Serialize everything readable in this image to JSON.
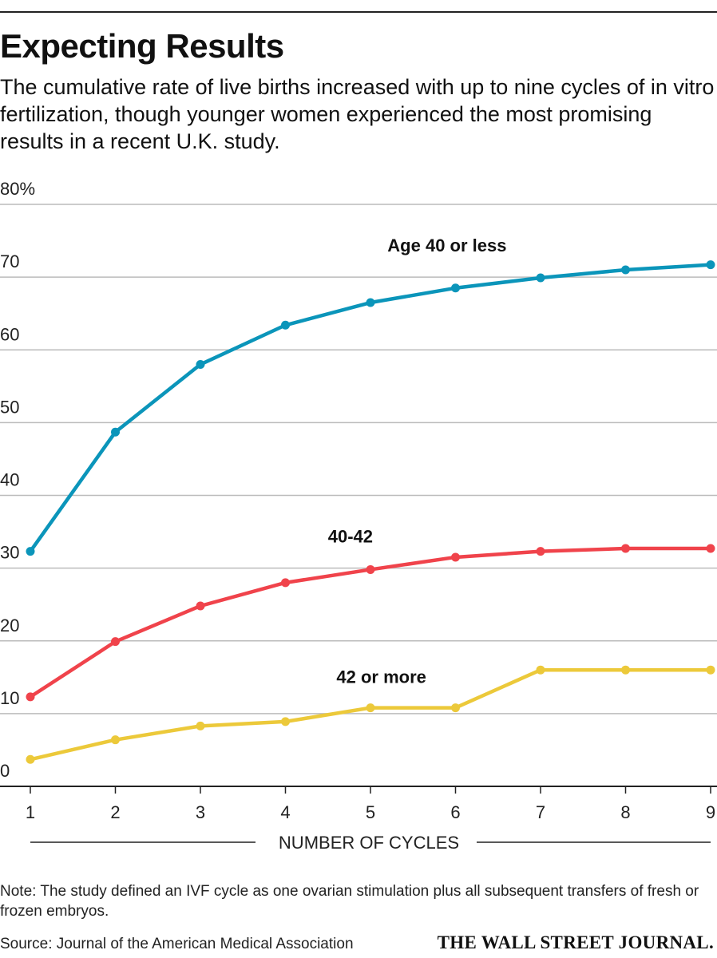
{
  "title": "Expecting Results",
  "subtitle": "The cumulative rate of live births increased with up to nine cycles of in vitro fertilization, though younger women experienced the most promising results in a recent U.K. study.",
  "note": "Note: The study defined an IVF cycle as one ovarian stimulation plus all subsequent transfers of fresh or frozen embryos.",
  "source": "Source: Journal of the American Medical Association",
  "brand": "THE WALL STREET JOURNAL.",
  "chart_data": {
    "type": "line",
    "title": "Expecting Results",
    "xlabel": "NUMBER OF CYCLES",
    "ylabel": "",
    "x": [
      1,
      2,
      3,
      4,
      5,
      6,
      7,
      8,
      9
    ],
    "ylim": [
      0,
      80
    ],
    "yticks": [
      0,
      10,
      20,
      30,
      40,
      50,
      60,
      70,
      80
    ],
    "ytick_labels": [
      "0",
      "10",
      "20",
      "30",
      "40",
      "50",
      "60",
      "70",
      "80%"
    ],
    "grid": true,
    "series": [
      {
        "name": "Age 40 or less",
        "color": "#0b95ba",
        "values": [
          32.3,
          48.7,
          58.0,
          63.4,
          66.5,
          68.5,
          69.9,
          71.0,
          71.7
        ],
        "label_at": 5.2,
        "label_y": 73.5
      },
      {
        "name": "40-42",
        "color": "#f0434b",
        "values": [
          12.3,
          19.9,
          24.8,
          28.0,
          29.8,
          31.5,
          32.3,
          32.7,
          32.7
        ],
        "label_at": 4.5,
        "label_y": 33.5
      },
      {
        "name": "42 or more",
        "color": "#ecc93a",
        "values": [
          3.7,
          6.4,
          8.3,
          8.9,
          10.8,
          10.8,
          16.0,
          16.0,
          16.0
        ],
        "label_at": 4.6,
        "label_y": 14.2
      }
    ]
  }
}
